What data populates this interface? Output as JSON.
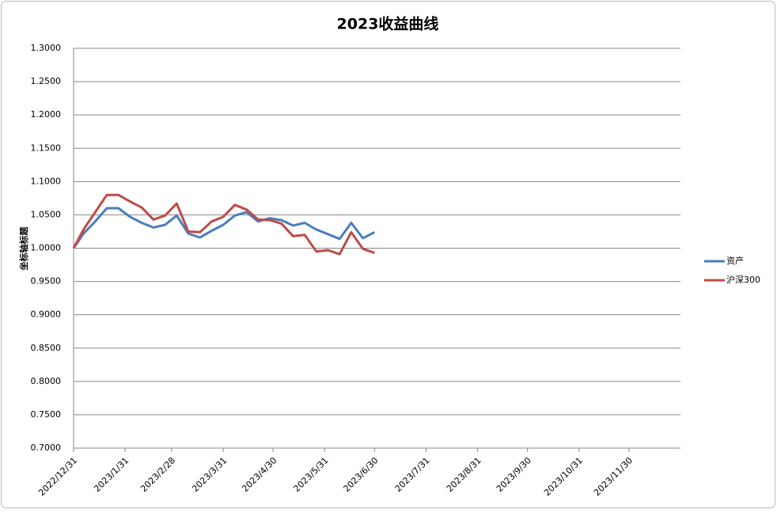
{
  "chart_data": {
    "type": "line",
    "title": "2023收益曲线",
    "y_label": "坐标轴标题",
    "x": [
      "2022/12/31",
      "2023/1/6",
      "2023/1/13",
      "2023/1/20",
      "2023/1/27",
      "2023/2/3",
      "2023/2/10",
      "2023/2/17",
      "2023/2/24",
      "2023/3/3",
      "2023/3/10",
      "2023/3/17",
      "2023/3/24",
      "2023/3/31",
      "2023/4/7",
      "2023/4/14",
      "2023/4/21",
      "2023/4/28",
      "2023/5/5",
      "2023/5/12",
      "2023/5/19",
      "2023/5/26",
      "2023/6/2",
      "2023/6/9",
      "2023/6/16",
      "2023/6/23",
      "2023/6/30"
    ],
    "series": [
      {
        "name": "资产",
        "color": "#4a7ebb",
        "values": [
          1.0,
          1.022,
          1.04,
          1.06,
          1.06,
          1.047,
          1.038,
          1.031,
          1.035,
          1.049,
          1.022,
          1.016,
          1.026,
          1.035,
          1.049,
          1.054,
          1.04,
          1.045,
          1.042,
          1.034,
          1.038,
          1.028,
          1.021,
          1.014,
          1.038,
          1.015,
          1.024
        ]
      },
      {
        "name": "沪深300",
        "color": "#be4b48",
        "values": [
          1.0,
          1.028,
          1.054,
          1.08,
          1.08,
          1.07,
          1.061,
          1.043,
          1.049,
          1.067,
          1.025,
          1.024,
          1.04,
          1.047,
          1.065,
          1.058,
          1.043,
          1.042,
          1.037,
          1.018,
          1.02,
          0.995,
          0.997,
          0.991,
          1.024,
          0.999,
          0.993
        ]
      }
    ],
    "xlim": [
      "2022/12/31",
      "2023/12/31"
    ],
    "xticks": [
      "2022/12/31",
      "2023/1/31",
      "2023/2/28",
      "2023/3/31",
      "2023/4/30",
      "2023/5/31",
      "2023/6/30",
      "2023/7/31",
      "2023/8/31",
      "2023/9/30",
      "2023/10/31",
      "2023/11/30"
    ],
    "ylim": [
      0.7,
      1.3
    ],
    "yticks": [
      {
        "value": 0.7,
        "label": "0.7000"
      },
      {
        "value": 0.75,
        "label": "0.7500"
      },
      {
        "value": 0.8,
        "label": "0.8000"
      },
      {
        "value": 0.85,
        "label": "0.8500"
      },
      {
        "value": 0.9,
        "label": "0.9000"
      },
      {
        "value": 0.95,
        "label": "0.9500"
      },
      {
        "value": 1.0,
        "label": "1.0000"
      },
      {
        "value": 1.05,
        "label": "1.0500"
      },
      {
        "value": 1.1,
        "label": "1.1000"
      },
      {
        "value": 1.15,
        "label": "1.1500"
      },
      {
        "value": 1.2,
        "label": "1.2000"
      },
      {
        "value": 1.25,
        "label": "1.2500"
      },
      {
        "value": 1.3,
        "label": "1.3000"
      }
    ],
    "grid": true,
    "legend": "right"
  }
}
